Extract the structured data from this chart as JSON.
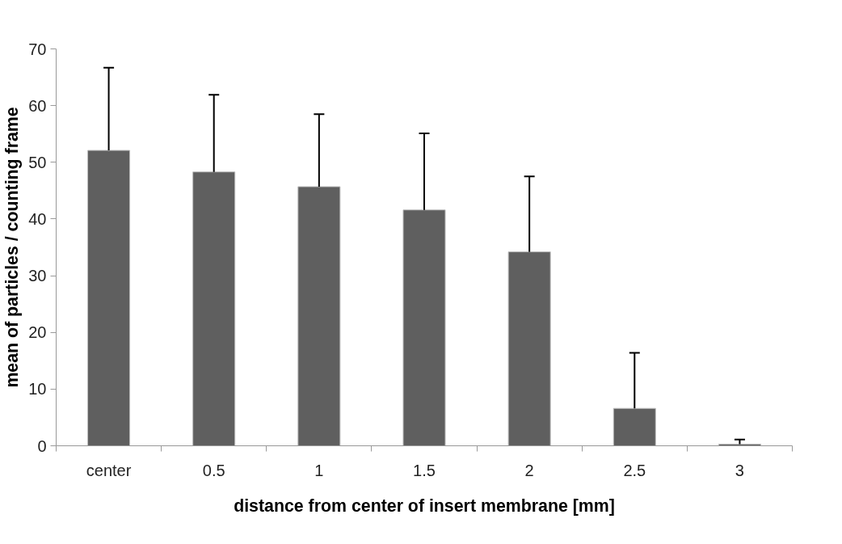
{
  "chart_data": {
    "type": "bar",
    "xlabel": "distance from center of insert membrane [mm]",
    "ylabel": "mean of particles / counting frame",
    "categories": [
      "center",
      "0.5",
      "1",
      "1.5",
      "2",
      "2.5",
      "3"
    ],
    "values": [
      52.1,
      48.3,
      45.7,
      41.6,
      34.2,
      6.6,
      0.3
    ],
    "errors": [
      [
        52.1,
        66.7
      ],
      [
        48.3,
        61.9
      ],
      [
        45.7,
        58.5
      ],
      [
        41.6,
        55.1
      ],
      [
        34.2,
        47.5
      ],
      [
        6.6,
        16.4
      ],
      [
        0.3,
        1.1
      ]
    ],
    "color": "#5f5f5f",
    "ylim": [
      0,
      70
    ],
    "yticks": [
      0,
      10,
      20,
      30,
      40,
      50,
      60,
      70
    ],
    "grid": false
  }
}
